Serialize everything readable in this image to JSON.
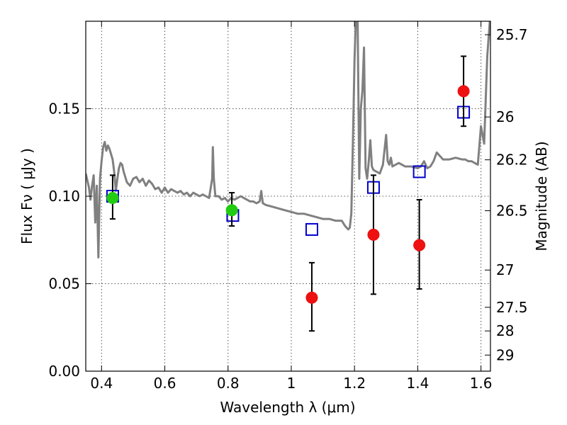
{
  "chart_data": {
    "type": "scatter",
    "xlabel": "Wavelength  λ (μm)",
    "ylabel": "Flux  Fν  ( μJy )",
    "y2label": "Magnitude (AB)",
    "xlim": [
      0.35,
      1.63
    ],
    "ylim": [
      0.0,
      0.2
    ],
    "xticks": [
      0.4,
      0.6,
      0.8,
      1.0,
      1.2,
      1.4,
      1.6
    ],
    "xtick_labels": [
      "0.4",
      "0.6",
      "0.8",
      "1",
      "1.2",
      "1.4",
      "1.6"
    ],
    "yticks": [
      0.0,
      0.05,
      0.1,
      0.15
    ],
    "ytick_labels": [
      "0.00",
      "0.05",
      "0.10",
      "0.15"
    ],
    "y2ticks": [
      {
        "label": "25.7",
        "flux": 0.1923
      },
      {
        "label": "26",
        "flux": 0.1453
      },
      {
        "label": "26.2",
        "flux": 0.1208
      },
      {
        "label": "26.5",
        "flux": 0.0917
      },
      {
        "label": "27",
        "flux": 0.0578
      },
      {
        "label": "27.5",
        "flux": 0.0365
      },
      {
        "label": "28",
        "flux": 0.023
      },
      {
        "label": "29",
        "flux": 0.0092
      }
    ],
    "grid": true,
    "series": [
      {
        "kind": "line",
        "color": "#808080",
        "x": [
          0.35,
          0.36,
          0.365,
          0.37,
          0.375,
          0.38,
          0.385,
          0.39,
          0.395,
          0.4,
          0.405,
          0.41,
          0.415,
          0.42,
          0.425,
          0.43,
          0.435,
          0.44,
          0.445,
          0.45,
          0.455,
          0.46,
          0.465,
          0.47,
          0.48,
          0.49,
          0.5,
          0.51,
          0.52,
          0.53,
          0.54,
          0.55,
          0.56,
          0.57,
          0.58,
          0.59,
          0.6,
          0.61,
          0.62,
          0.63,
          0.64,
          0.65,
          0.66,
          0.67,
          0.68,
          0.69,
          0.7,
          0.71,
          0.72,
          0.73,
          0.74,
          0.75,
          0.752,
          0.755,
          0.76,
          0.77,
          0.78,
          0.79,
          0.8,
          0.81,
          0.82,
          0.83,
          0.84,
          0.85,
          0.86,
          0.87,
          0.88,
          0.89,
          0.9,
          0.905,
          0.91,
          0.92,
          0.94,
          0.96,
          0.98,
          1.0,
          1.02,
          1.04,
          1.06,
          1.08,
          1.1,
          1.12,
          1.14,
          1.16,
          1.17,
          1.18,
          1.185,
          1.19,
          1.195,
          1.2,
          1.205,
          1.21,
          1.215,
          1.22,
          1.225,
          1.23,
          1.235,
          1.24,
          1.245,
          1.25,
          1.255,
          1.26,
          1.27,
          1.28,
          1.29,
          1.3,
          1.305,
          1.31,
          1.315,
          1.32,
          1.33,
          1.34,
          1.35,
          1.36,
          1.38,
          1.4,
          1.41,
          1.42,
          1.43,
          1.44,
          1.45,
          1.46,
          1.48,
          1.5,
          1.52,
          1.54,
          1.55,
          1.56,
          1.57,
          1.58,
          1.59,
          1.6,
          1.61,
          1.62,
          1.63
        ],
        "y": [
          0.113,
          0.105,
          0.098,
          0.106,
          0.112,
          0.085,
          0.106,
          0.065,
          0.11,
          0.12,
          0.128,
          0.131,
          0.126,
          0.129,
          0.127,
          0.124,
          0.121,
          0.114,
          0.103,
          0.11,
          0.116,
          0.119,
          0.118,
          0.114,
          0.108,
          0.106,
          0.11,
          0.111,
          0.108,
          0.11,
          0.106,
          0.109,
          0.107,
          0.104,
          0.105,
          0.102,
          0.105,
          0.102,
          0.104,
          0.103,
          0.102,
          0.103,
          0.101,
          0.102,
          0.1,
          0.102,
          0.101,
          0.1,
          0.101,
          0.1,
          0.099,
          0.11,
          0.128,
          0.11,
          0.1,
          0.1,
          0.098,
          0.099,
          0.097,
          0.099,
          0.098,
          0.099,
          0.1,
          0.099,
          0.098,
          0.097,
          0.097,
          0.096,
          0.097,
          0.103,
          0.096,
          0.095,
          0.094,
          0.093,
          0.092,
          0.091,
          0.09,
          0.09,
          0.089,
          0.088,
          0.087,
          0.087,
          0.086,
          0.086,
          0.083,
          0.081,
          0.082,
          0.09,
          0.13,
          0.178,
          0.205,
          0.2,
          0.11,
          0.15,
          0.16,
          0.185,
          0.116,
          0.11,
          0.12,
          0.132,
          0.117,
          0.115,
          0.114,
          0.113,
          0.118,
          0.135,
          0.12,
          0.118,
          0.122,
          0.117,
          0.118,
          0.119,
          0.118,
          0.117,
          0.117,
          0.116,
          0.117,
          0.12,
          0.116,
          0.117,
          0.12,
          0.125,
          0.121,
          0.121,
          0.122,
          0.121,
          0.121,
          0.12,
          0.12,
          0.119,
          0.118,
          0.14,
          0.13,
          0.18,
          0.205
        ]
      },
      {
        "kind": "open-square",
        "color": "#0000cc",
        "x": [
          0.435,
          0.815,
          1.065,
          1.26,
          1.405,
          1.545
        ],
        "y": [
          0.1,
          0.089,
          0.081,
          0.105,
          0.114,
          0.148
        ]
      },
      {
        "kind": "point-errorbar",
        "color": "#22cc11",
        "x": [
          0.435,
          0.812
        ],
        "y": [
          0.099,
          0.092
        ],
        "yerr_low": [
          0.087,
          0.083
        ],
        "yerr_high": [
          0.112,
          0.102
        ]
      },
      {
        "kind": "point-errorbar",
        "color": "#ee1111",
        "x": [
          1.065,
          1.26,
          1.405,
          1.545
        ],
        "y": [
          0.042,
          0.078,
          0.072,
          0.16
        ],
        "yerr_low": [
          0.023,
          0.044,
          0.047,
          0.14
        ],
        "yerr_high": [
          0.062,
          0.112,
          0.098,
          0.18
        ]
      }
    ]
  }
}
